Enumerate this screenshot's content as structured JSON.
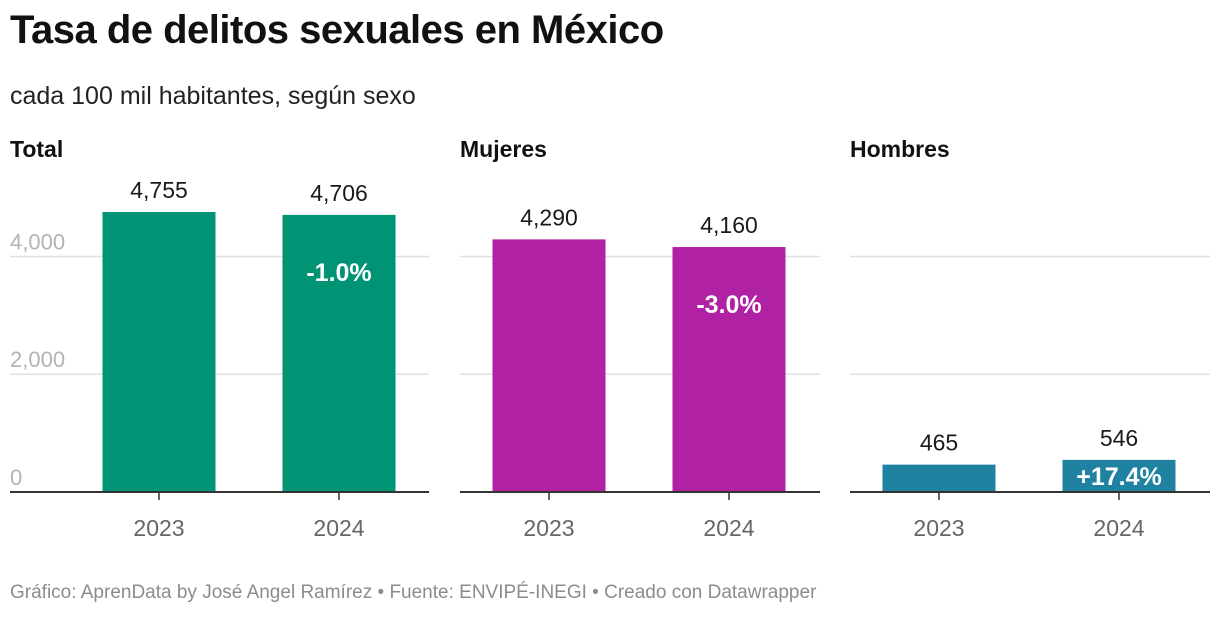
{
  "title": "Tasa de delitos sexuales en México",
  "subtitle": "cada 100 mil habitantes, según sexo",
  "footer": "Gráfico: AprenData by José Angel Ramírez • Fuente: ENVIPÉ-INEGI • Creado con Datawrapper",
  "colors": {
    "total": "#009474",
    "mujeres": "#b021a3",
    "hombres": "#1e82a0",
    "gridline": "#e0e0e0",
    "axis": "#333333",
    "tick_label": "#b3b3b3",
    "category_label": "#666666"
  },
  "chart_data": [
    {
      "type": "bar",
      "title": "Total",
      "categories": [
        "2023",
        "2024"
      ],
      "values": [
        4755,
        4706
      ],
      "value_labels": [
        "4,755",
        "4,706"
      ],
      "change_label": "-1.0%",
      "color_key": "total",
      "ylim": [
        0,
        4755
      ],
      "yticks": [
        0,
        2000,
        4000
      ],
      "ytick_labels": [
        "0",
        "2,000",
        "4,000"
      ],
      "show_ytick_labels": true,
      "grid": true
    },
    {
      "type": "bar",
      "title": "Mujeres",
      "categories": [
        "2023",
        "2024"
      ],
      "values": [
        4290,
        4160
      ],
      "value_labels": [
        "4,290",
        "4,160"
      ],
      "change_label": "-3.0%",
      "color_key": "mujeres",
      "ylim": [
        0,
        4755
      ],
      "yticks": [
        0,
        2000,
        4000
      ],
      "ytick_labels": [
        "0",
        "2,000",
        "4,000"
      ],
      "show_ytick_labels": false,
      "grid": true
    },
    {
      "type": "bar",
      "title": "Hombres",
      "categories": [
        "2023",
        "2024"
      ],
      "values": [
        465,
        546
      ],
      "value_labels": [
        "465",
        "546"
      ],
      "change_label": "+17.4%",
      "color_key": "hombres",
      "ylim": [
        0,
        4755
      ],
      "yticks": [
        0,
        2000,
        4000
      ],
      "ytick_labels": [
        "0",
        "2,000",
        "4,000"
      ],
      "show_ytick_labels": false,
      "grid": true
    }
  ]
}
